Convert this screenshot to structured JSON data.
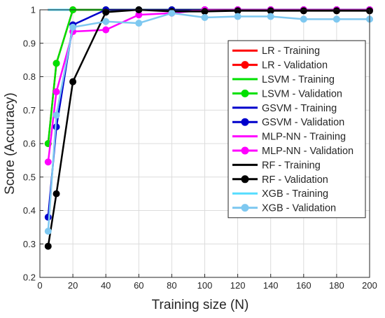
{
  "chart_data": {
    "type": "line",
    "xlabel": "Training size (N)",
    "ylabel": "Score (Accuracy)",
    "xlim": [
      0,
      200
    ],
    "ylim": [
      0.2,
      1.0
    ],
    "xticks": [
      0,
      20,
      40,
      60,
      80,
      100,
      120,
      140,
      160,
      180,
      200
    ],
    "yticks": [
      0.2,
      0.3,
      0.4,
      0.5,
      0.6,
      0.7,
      0.8,
      0.9,
      1.0
    ],
    "ytick_labels": [
      "0.2",
      "0.3",
      "0.4",
      "0.5",
      "0.6",
      "0.7",
      "0.8",
      "0.9",
      "1"
    ],
    "grid": true,
    "legend_position": "top-right",
    "x": [
      5,
      10,
      20,
      40,
      60,
      80,
      100,
      120,
      140,
      160,
      180,
      200
    ],
    "series": [
      {
        "name": "LR - Training",
        "color": "#ff0000",
        "marker": false,
        "values": [
          1,
          1,
          1,
          1,
          1,
          1,
          1,
          1,
          1,
          1,
          1,
          1
        ]
      },
      {
        "name": "LR - Validation",
        "color": "#ff0000",
        "marker": true,
        "values": [
          0.6,
          0.84,
          1,
          1,
          1,
          1,
          1,
          1,
          1,
          1,
          1,
          1
        ]
      },
      {
        "name": "LSVM - Training",
        "color": "#00e000",
        "marker": false,
        "values": [
          1,
          1,
          1,
          1,
          1,
          1,
          1,
          1,
          1,
          1,
          1,
          1
        ]
      },
      {
        "name": "LSVM - Validation",
        "color": "#00e000",
        "marker": true,
        "values": [
          0.6,
          0.84,
          1,
          1,
          1,
          1,
          1,
          1,
          1,
          1,
          1,
          1
        ]
      },
      {
        "name": "GSVM - Training",
        "color": "#0000cc",
        "marker": false,
        "values": [
          1,
          1,
          1,
          1,
          1,
          1,
          1,
          1,
          1,
          1,
          1,
          1
        ]
      },
      {
        "name": "GSVM - Validation",
        "color": "#0000cc",
        "marker": true,
        "values": [
          0.38,
          0.65,
          0.955,
          1,
          1,
          1,
          1,
          1,
          1,
          1,
          1,
          1
        ]
      },
      {
        "name": "MLP-NN - Training",
        "color": "#ff00ff",
        "marker": false,
        "values": [
          1,
          1,
          1,
          1,
          1,
          1,
          1,
          1,
          1,
          1,
          1,
          1
        ]
      },
      {
        "name": "MLP-NN - Validation",
        "color": "#ff00ff",
        "marker": true,
        "values": [
          0.545,
          0.755,
          0.935,
          0.94,
          0.985,
          0.99,
          1,
          1,
          1,
          1,
          1,
          1
        ]
      },
      {
        "name": "RF - Training",
        "color": "#000000",
        "marker": false,
        "values": [
          1,
          1,
          1,
          1,
          1,
          1,
          1,
          1,
          1,
          1,
          1,
          1
        ]
      },
      {
        "name": "RF - Validation",
        "color": "#000000",
        "marker": true,
        "values": [
          0.293,
          0.45,
          0.785,
          0.993,
          1,
          0.995,
          0.995,
          0.997,
          0.997,
          0.997,
          0.997,
          0.997
        ]
      },
      {
        "name": "XGB - Training",
        "color": "#55ddff",
        "marker": false,
        "values": [
          1,
          1,
          1,
          1,
          1,
          1,
          1,
          1,
          1,
          1,
          1,
          1
        ]
      },
      {
        "name": "XGB - Validation",
        "color": "#7ec8f0",
        "marker": true,
        "values": [
          0.338,
          0.685,
          0.948,
          0.965,
          0.96,
          0.99,
          0.977,
          0.98,
          0.98,
          0.972,
          0.972,
          0.972
        ]
      }
    ]
  }
}
